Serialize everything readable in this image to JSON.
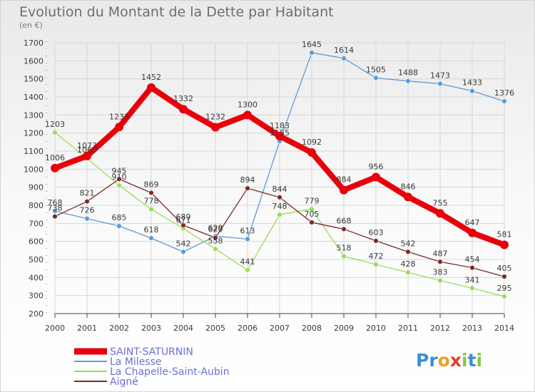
{
  "chart_data": {
    "type": "line",
    "title": "Evolution du Montant de la Dette par Habitant",
    "subtitle": "(en €)",
    "xlabel": "",
    "ylabel": "",
    "ylim": [
      200,
      1700
    ],
    "ytick_step": 100,
    "grid": true,
    "legend_position": "bottom-left",
    "categories": [
      "2000",
      "2001",
      "2002",
      "2003",
      "2004",
      "2005",
      "2006",
      "2007",
      "2008",
      "2009",
      "2010",
      "2011",
      "2012",
      "2013",
      "2014"
    ],
    "series": [
      {
        "name": "SAINT-SATURNIN",
        "color": "#e8000a",
        "bold": true,
        "values": [
          1006,
          1073,
          1233,
          1452,
          1332,
          1232,
          1300,
          1183,
          1092,
          884,
          956,
          846,
          755,
          647,
          581
        ],
        "labels": [
          "1006",
          "1073",
          "1233",
          "1452",
          "1332",
          "1232",
          "1300",
          "1183",
          "1092",
          "884",
          "956",
          "846",
          "755",
          "647",
          "581"
        ]
      },
      {
        "name": "La Milesse",
        "color": "#5b9bd5",
        "bold": false,
        "values": [
          768,
          726,
          685,
          618,
          542,
          629,
          613,
          1155,
          1645,
          1614,
          1505,
          1488,
          1473,
          1433,
          1376
        ],
        "labels": [
          "768",
          "726",
          "685",
          "618",
          "542",
          "629",
          "613",
          "1155",
          "1645",
          "1614",
          "1505",
          "1488",
          "1473",
          "1433",
          "1376"
        ]
      },
      {
        "name": "La Chapelle-Saint-Aubin",
        "color": "#99dd55",
        "bold": false,
        "values": [
          1203,
          1060,
          910,
          778,
          671,
          558,
          441,
          748,
          779,
          518,
          472,
          428,
          383,
          341,
          295
        ],
        "labels": [
          "1203",
          "1060",
          "910",
          "778",
          "671",
          "558",
          "441",
          "748",
          "779",
          "518",
          "472",
          "428",
          "383",
          "341",
          "295"
        ]
      },
      {
        "name": "Aigné",
        "color": "#7a2a2a",
        "bold": false,
        "values": [
          738,
          821,
          945,
          869,
          689,
          620,
          894,
          844,
          705,
          668,
          603,
          542,
          487,
          454,
          405
        ],
        "labels": [
          "738",
          "821",
          "945",
          "869",
          "689",
          "620",
          "894",
          "844",
          "705",
          "668",
          "603",
          "542",
          "487",
          "454",
          "405"
        ]
      }
    ]
  },
  "logo": {
    "text": "Proxiti",
    "colors": [
      "#3a8fd8",
      "#f0a020",
      "#e0402a",
      "#8cc63f"
    ]
  }
}
